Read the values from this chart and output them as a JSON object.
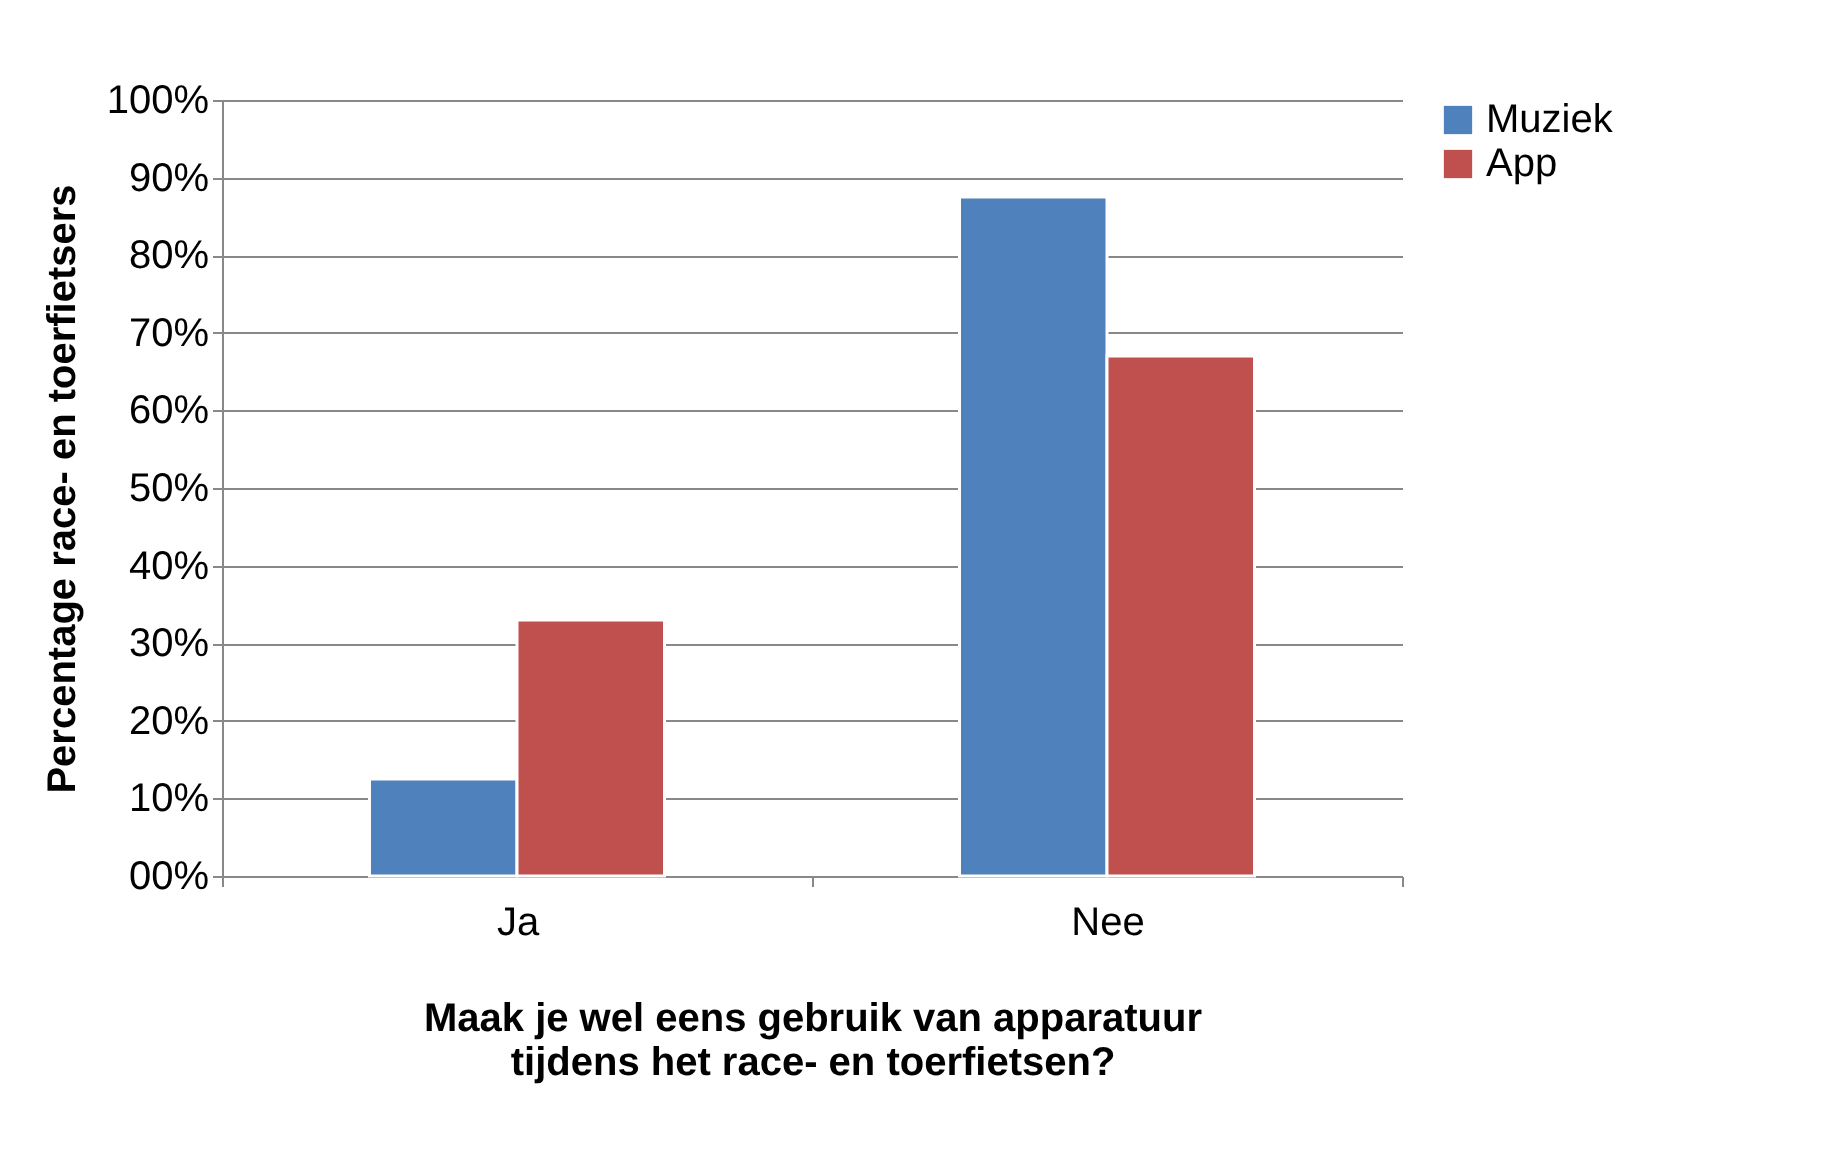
{
  "chart_data": {
    "type": "bar",
    "xlabel": "Maak je wel eens gebruik van apparatuur tijdens het race- en toerfietsen?",
    "ylabel": "Percentage race- en toerfietsers",
    "categories": [
      "Ja",
      "Nee"
    ],
    "series": [
      {
        "name": "Muziek",
        "color": "#4f81bd",
        "values": [
          12.5,
          87.5
        ]
      },
      {
        "name": "App",
        "color": "#c0504d",
        "values": [
          33,
          67
        ]
      }
    ],
    "ylim": [
      0,
      100
    ],
    "yticks": [
      {
        "value": 0,
        "label": "00%"
      },
      {
        "value": 10,
        "label": "10%"
      },
      {
        "value": 20,
        "label": "20%"
      },
      {
        "value": 30,
        "label": "30%"
      },
      {
        "value": 40,
        "label": "40%"
      },
      {
        "value": 50,
        "label": "50%"
      },
      {
        "value": 60,
        "label": "60%"
      },
      {
        "value": 70,
        "label": "70%"
      },
      {
        "value": 80,
        "label": "80%"
      },
      {
        "value": 90,
        "label": "90%"
      },
      {
        "value": 100,
        "label": "100%"
      }
    ],
    "grid": "y",
    "legend": "right"
  }
}
